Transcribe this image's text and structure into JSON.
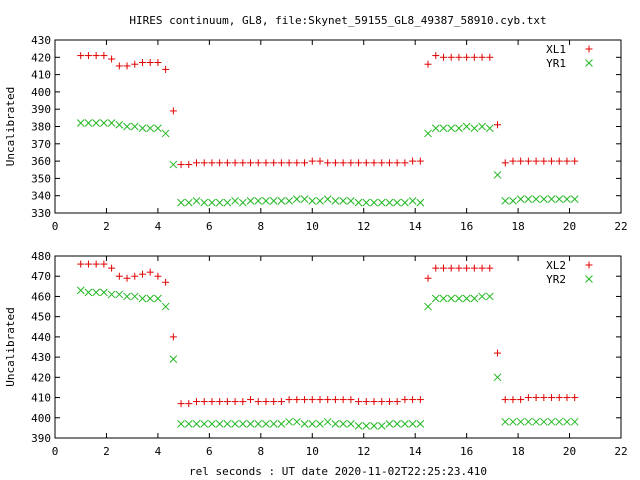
{
  "figure": {
    "title": "HIRES continuum, GL8, file:Skynet_59155_GL8_49387_58910.cyb.txt",
    "shared_xlabel": "rel seconds : UT date 2020-11-02T22:25:23.410"
  },
  "colors": {
    "red": "#e00000",
    "green": "#22b822"
  },
  "chart_data": [
    {
      "type": "scatter",
      "ylabel": "Uncalibrated",
      "xlim": [
        0,
        22
      ],
      "ylim": [
        330,
        430
      ],
      "x_ticks": [
        0,
        2,
        4,
        6,
        8,
        10,
        12,
        14,
        16,
        18,
        20,
        22
      ],
      "y_ticks": [
        330,
        340,
        350,
        360,
        370,
        380,
        390,
        400,
        410,
        420,
        430
      ],
      "legend_position": "top-right",
      "series": [
        {
          "name": "XL1",
          "marker": "plus",
          "color": "#e00000",
          "x": [
            1.0,
            1.3,
            1.6,
            1.9,
            2.2,
            2.5,
            2.8,
            3.1,
            3.4,
            3.7,
            4.0,
            4.3,
            4.6,
            4.9,
            5.2,
            5.5,
            5.8,
            6.1,
            6.4,
            6.7,
            7.0,
            7.3,
            7.6,
            7.9,
            8.2,
            8.5,
            8.8,
            9.1,
            9.4,
            9.7,
            10.0,
            10.3,
            10.6,
            10.9,
            11.2,
            11.5,
            11.8,
            12.1,
            12.4,
            12.7,
            13.0,
            13.3,
            13.6,
            13.9,
            14.2,
            14.5,
            14.8,
            15.1,
            15.4,
            15.7,
            16.0,
            16.3,
            16.6,
            16.9,
            17.2,
            17.5,
            17.8,
            18.1,
            18.4,
            18.7,
            19.0,
            19.3,
            19.6,
            19.9,
            20.2
          ],
          "y": [
            421,
            421,
            421,
            421,
            419,
            415,
            415,
            416,
            417,
            417,
            417,
            413,
            389,
            358,
            358,
            359,
            359,
            359,
            359,
            359,
            359,
            359,
            359,
            359,
            359,
            359,
            359,
            359,
            359,
            359,
            360,
            360,
            359,
            359,
            359,
            359,
            359,
            359,
            359,
            359,
            359,
            359,
            359,
            360,
            360,
            416,
            421,
            420,
            420,
            420,
            420,
            420,
            420,
            420,
            381,
            359,
            360,
            360,
            360,
            360,
            360,
            360,
            360,
            360,
            360
          ]
        },
        {
          "name": "YR1",
          "marker": "cross",
          "color": "#22b822",
          "x": [
            1.0,
            1.3,
            1.6,
            1.9,
            2.2,
            2.5,
            2.8,
            3.1,
            3.4,
            3.7,
            4.0,
            4.3,
            4.6,
            4.9,
            5.2,
            5.5,
            5.8,
            6.1,
            6.4,
            6.7,
            7.0,
            7.3,
            7.6,
            7.9,
            8.2,
            8.5,
            8.8,
            9.1,
            9.4,
            9.7,
            10.0,
            10.3,
            10.6,
            10.9,
            11.2,
            11.5,
            11.8,
            12.1,
            12.4,
            12.7,
            13.0,
            13.3,
            13.6,
            13.9,
            14.2,
            14.5,
            14.8,
            15.1,
            15.4,
            15.7,
            16.0,
            16.3,
            16.6,
            16.9,
            17.2,
            17.5,
            17.8,
            18.1,
            18.4,
            18.7,
            19.0,
            19.3,
            19.6,
            19.9,
            20.2
          ],
          "y": [
            382,
            382,
            382,
            382,
            382,
            381,
            380,
            380,
            379,
            379,
            379,
            376,
            358,
            336,
            336,
            337,
            336,
            336,
            336,
            336,
            337,
            336,
            337,
            337,
            337,
            337,
            337,
            337,
            338,
            338,
            337,
            337,
            338,
            337,
            337,
            337,
            336,
            336,
            336,
            336,
            336,
            336,
            336,
            337,
            336,
            376,
            379,
            379,
            379,
            379,
            380,
            379,
            380,
            379,
            352,
            337,
            337,
            338,
            338,
            338,
            338,
            338,
            338,
            338,
            338
          ]
        }
      ]
    },
    {
      "type": "scatter",
      "ylabel": "Uncalibrated",
      "xlim": [
        0,
        22
      ],
      "ylim": [
        390,
        480
      ],
      "x_ticks": [
        0,
        2,
        4,
        6,
        8,
        10,
        12,
        14,
        16,
        18,
        20,
        22
      ],
      "y_ticks": [
        390,
        400,
        410,
        420,
        430,
        440,
        450,
        460,
        470,
        480
      ],
      "legend_position": "top-right",
      "series": [
        {
          "name": "XL2",
          "marker": "plus",
          "color": "#e00000",
          "x": [
            1.0,
            1.3,
            1.6,
            1.9,
            2.2,
            2.5,
            2.8,
            3.1,
            3.4,
            3.7,
            4.0,
            4.3,
            4.6,
            4.9,
            5.2,
            5.5,
            5.8,
            6.1,
            6.4,
            6.7,
            7.0,
            7.3,
            7.6,
            7.9,
            8.2,
            8.5,
            8.8,
            9.1,
            9.4,
            9.7,
            10.0,
            10.3,
            10.6,
            10.9,
            11.2,
            11.5,
            11.8,
            12.1,
            12.4,
            12.7,
            13.0,
            13.3,
            13.6,
            13.9,
            14.2,
            14.5,
            14.8,
            15.1,
            15.4,
            15.7,
            16.0,
            16.3,
            16.6,
            16.9,
            17.2,
            17.5,
            17.8,
            18.1,
            18.4,
            18.7,
            19.0,
            19.3,
            19.6,
            19.9,
            20.2
          ],
          "y": [
            476,
            476,
            476,
            476,
            474,
            470,
            469,
            470,
            471,
            472,
            470,
            467,
            440,
            407,
            407,
            408,
            408,
            408,
            408,
            408,
            408,
            408,
            409,
            408,
            408,
            408,
            408,
            409,
            409,
            409,
            409,
            409,
            409,
            409,
            409,
            409,
            408,
            408,
            408,
            408,
            408,
            408,
            409,
            409,
            409,
            469,
            474,
            474,
            474,
            474,
            474,
            474,
            474,
            474,
            432,
            409,
            409,
            409,
            410,
            410,
            410,
            410,
            410,
            410,
            410
          ]
        },
        {
          "name": "YR2",
          "marker": "cross",
          "color": "#22b822",
          "x": [
            1.0,
            1.3,
            1.6,
            1.9,
            2.2,
            2.5,
            2.8,
            3.1,
            3.4,
            3.7,
            4.0,
            4.3,
            4.6,
            4.9,
            5.2,
            5.5,
            5.8,
            6.1,
            6.4,
            6.7,
            7.0,
            7.3,
            7.6,
            7.9,
            8.2,
            8.5,
            8.8,
            9.1,
            9.4,
            9.7,
            10.0,
            10.3,
            10.6,
            10.9,
            11.2,
            11.5,
            11.8,
            12.1,
            12.4,
            12.7,
            13.0,
            13.3,
            13.6,
            13.9,
            14.2,
            14.5,
            14.8,
            15.1,
            15.4,
            15.7,
            16.0,
            16.3,
            16.6,
            16.9,
            17.2,
            17.5,
            17.8,
            18.1,
            18.4,
            18.7,
            19.0,
            19.3,
            19.6,
            19.9,
            20.2
          ],
          "y": [
            463,
            462,
            462,
            462,
            461,
            461,
            460,
            460,
            459,
            459,
            459,
            455,
            429,
            397,
            397,
            397,
            397,
            397,
            397,
            397,
            397,
            397,
            397,
            397,
            397,
            397,
            397,
            398,
            398,
            397,
            397,
            397,
            398,
            397,
            397,
            397,
            396,
            396,
            396,
            396,
            397,
            397,
            397,
            397,
            397,
            455,
            459,
            459,
            459,
            459,
            459,
            459,
            460,
            460,
            420,
            398,
            398,
            398,
            398,
            398,
            398,
            398,
            398,
            398,
            398
          ]
        }
      ]
    }
  ]
}
